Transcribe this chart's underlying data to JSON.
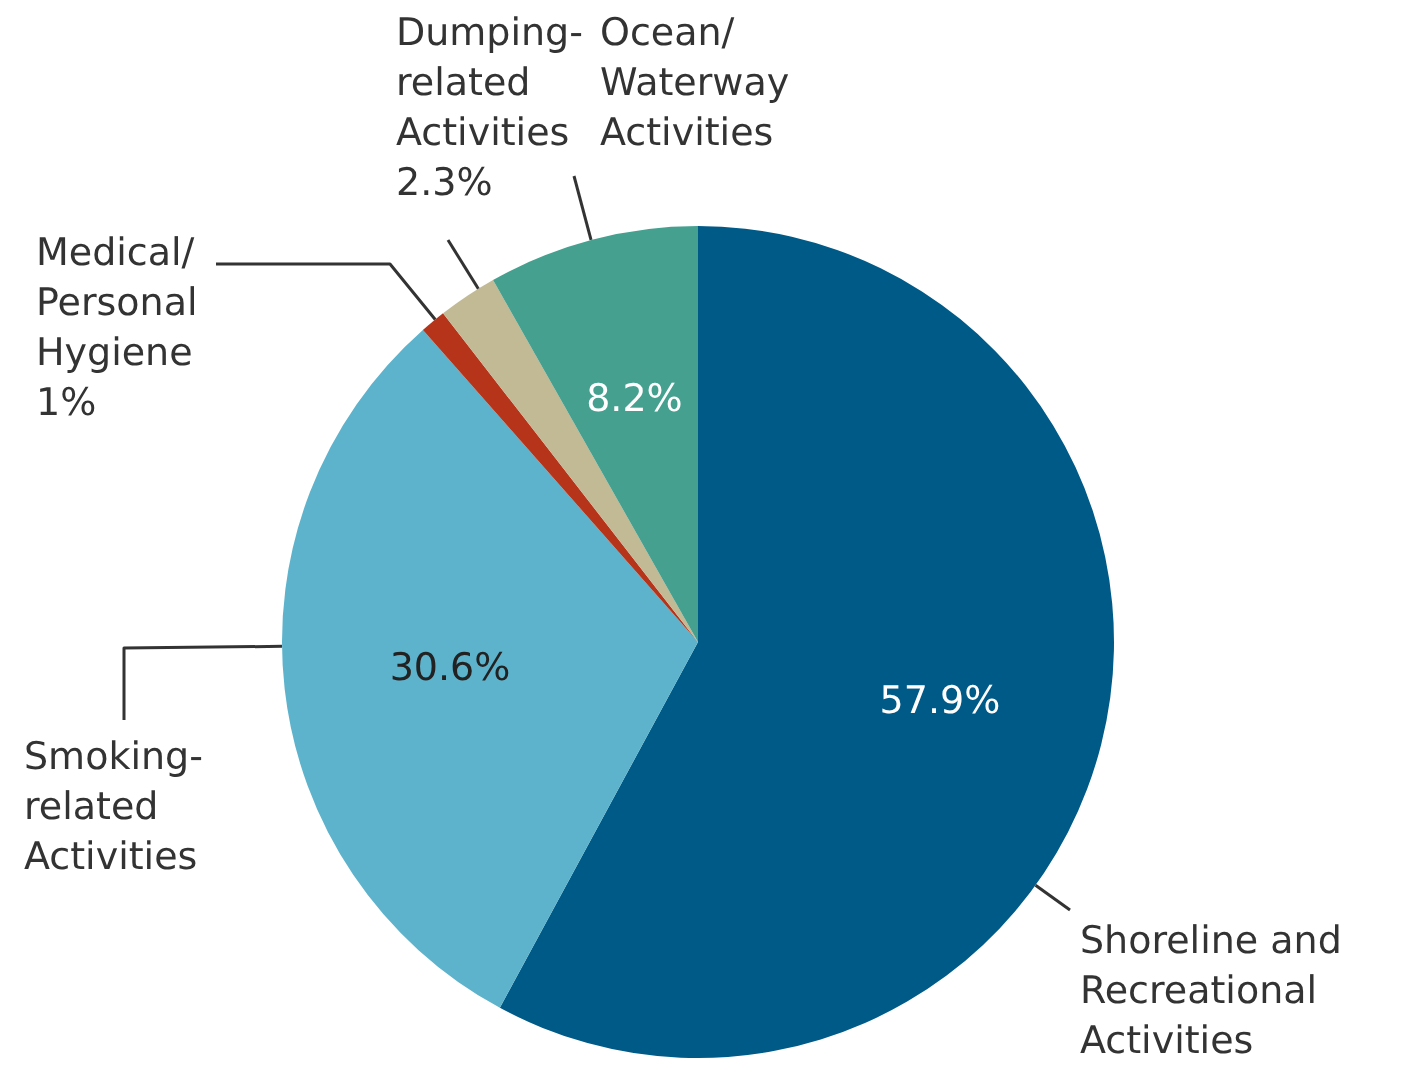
{
  "chart_data": {
    "type": "pie",
    "categories": [
      "Shoreline and Recreational Activities",
      "Smoking-related Activities",
      "Medical/Personal Hygiene",
      "Dumping-related Activities",
      "Ocean/Waterway Activities"
    ],
    "values": [
      57.9,
      30.6,
      1,
      2.3,
      8.2
    ],
    "colors": [
      "#005a87",
      "#5eb3cc",
      "#b5341a",
      "#c2b995",
      "#45a08f"
    ],
    "value_labels": [
      "57.9%",
      "30.6%",
      "1%",
      "2.3%",
      "8.2%"
    ],
    "legend": false
  }
}
